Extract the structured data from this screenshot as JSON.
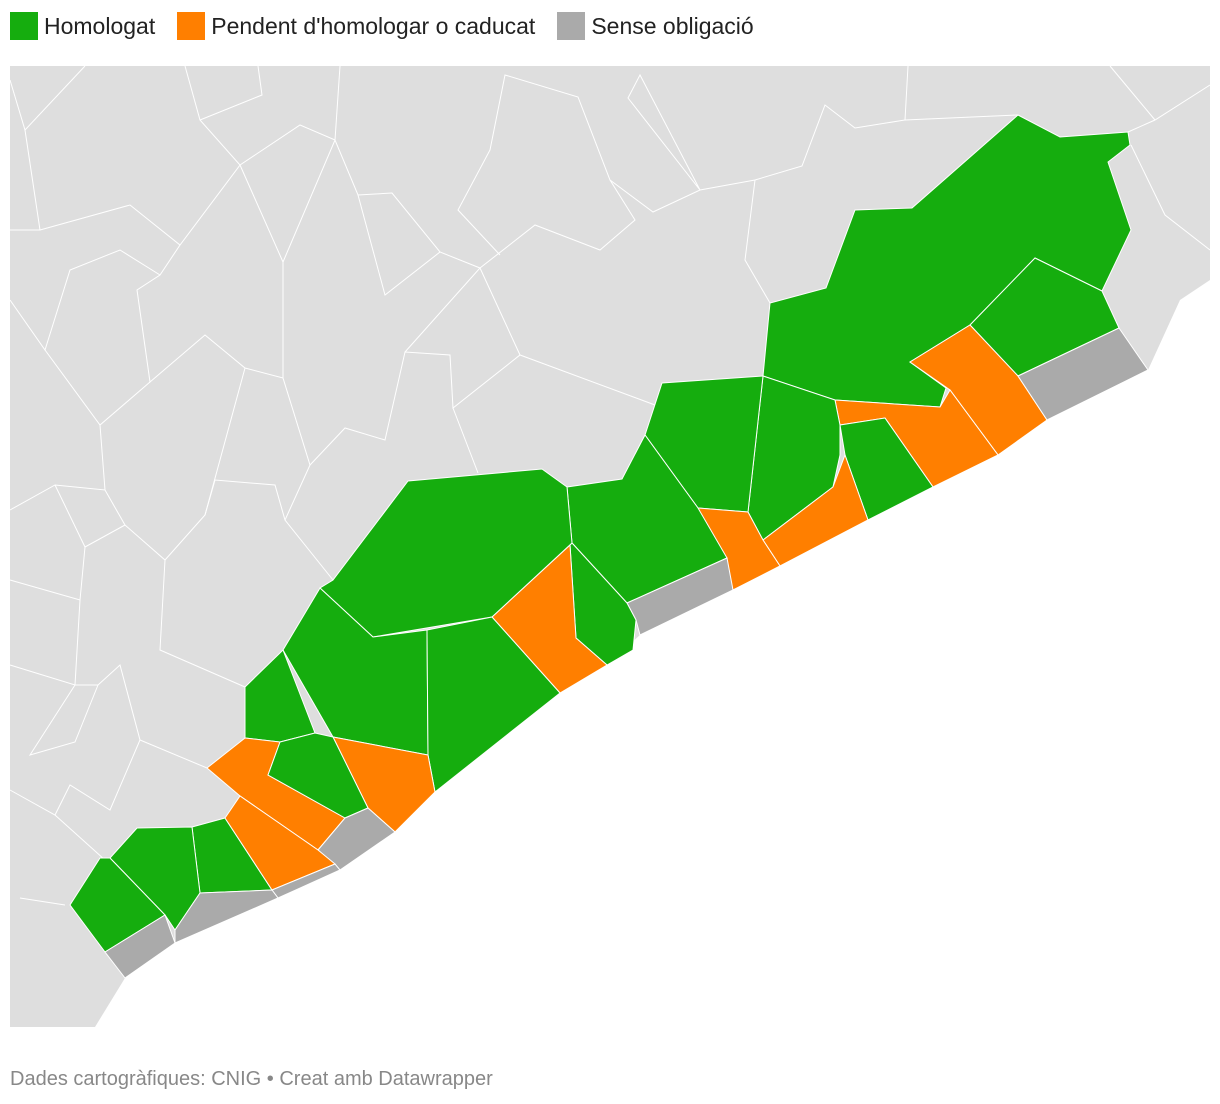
{
  "legend": {
    "items": [
      {
        "label": "Homologat",
        "color": "#15ad0e"
      },
      {
        "label": "Pendent d'homologar o caducat",
        "color": "#ff7f00"
      },
      {
        "label": "Sense obligació",
        "color": "#aaaaaa"
      }
    ]
  },
  "footer": {
    "source": "Dades cartogràfiques: CNIG",
    "credit": "• Creat amb Datawrapper"
  }
}
